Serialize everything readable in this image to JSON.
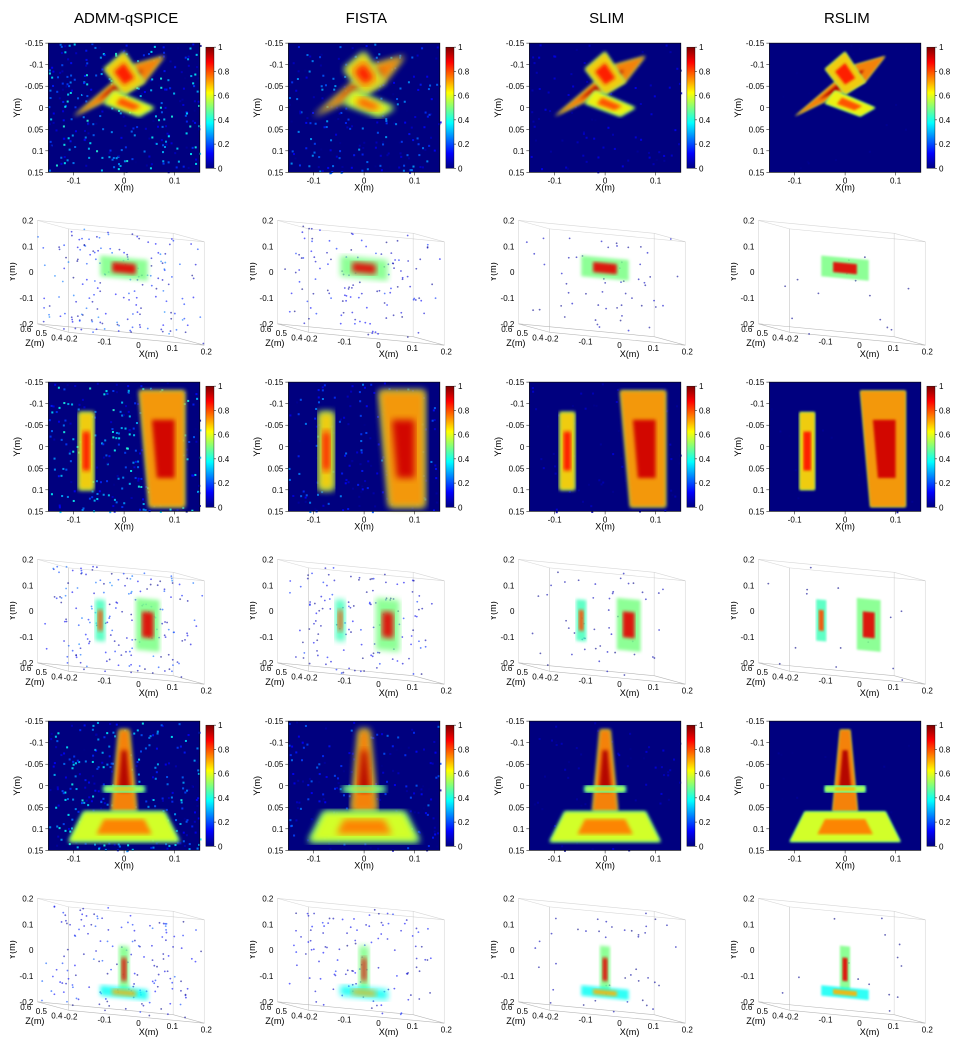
{
  "columns": [
    "ADMM-qSPICE",
    "FISTA",
    "SLIM",
    "RSLIM"
  ],
  "colormap": {
    "jet": [
      "#00007f",
      "#0000ff",
      "#007fff",
      "#00ffff",
      "#7fff7f",
      "#ffff00",
      "#ff7f00",
      "#ff0000",
      "#7f0000"
    ],
    "stops": [
      0,
      0.125,
      0.25,
      0.375,
      0.5,
      0.625,
      0.75,
      0.875,
      1
    ]
  },
  "colorbar": {
    "ticks": [
      0,
      0.2,
      0.4,
      0.6,
      0.8,
      1
    ],
    "labels": [
      "0",
      "0.2",
      "0.4",
      "0.6",
      "0.8",
      "1"
    ]
  },
  "axes2d": {
    "x": {
      "lim": [
        -0.15,
        0.15
      ],
      "ticks": [
        -0.1,
        0,
        0.1
      ],
      "labels": [
        "-0.1",
        "0",
        "0.1"
      ],
      "label": "X(m)"
    },
    "y": {
      "lim": [
        -0.15,
        0.15
      ],
      "ticks": [
        -0.15,
        -0.1,
        -0.05,
        0,
        0.05,
        0.1,
        0.15
      ],
      "labels": [
        "-0.15",
        "-0.1",
        "-0.05",
        "0",
        "0.05",
        "0.1",
        "0.15"
      ],
      "label": "Y(m)"
    }
  },
  "axes3d": {
    "x": {
      "lim": [
        -0.2,
        0.2
      ],
      "ticks": [
        -0.2,
        -0.1,
        0,
        0.1,
        0.2
      ],
      "labels": [
        "-0.2",
        "-0.1",
        "0",
        "0.1",
        "0.2"
      ],
      "label": "X(m)"
    },
    "y": {
      "lim": [
        -0.2,
        0.2
      ],
      "ticks": [
        -0.2,
        -0.1,
        0,
        0.1,
        0.2
      ],
      "labels": [
        "-0.2",
        "-0.1",
        "0",
        "0.1",
        "0.2"
      ],
      "label": "Y(m)"
    },
    "z": {
      "lim": [
        0.4,
        0.6
      ],
      "ticks": [
        0.4,
        0.5,
        0.6
      ],
      "labels": [
        "0.4",
        "0.5",
        "0.6"
      ],
      "label": "Z(m)"
    }
  },
  "rows": [
    {
      "type": "2d",
      "subject": "airplane",
      "noise": [
        0.35,
        0.25,
        0.1,
        0.02
      ],
      "shapes": [
        {
          "poly": [
            [
              0.02,
              -0.1
            ],
            [
              0.08,
              -0.12
            ],
            [
              0.04,
              -0.06
            ],
            [
              -0.1,
              0.02
            ],
            [
              -0.06,
              -0.02
            ]
          ],
          "intensity": 0.95
        },
        {
          "poly": [
            [
              -0.04,
              -0.09
            ],
            [
              0.0,
              -0.13
            ],
            [
              0.04,
              -0.06
            ],
            [
              0.0,
              -0.03
            ]
          ],
          "intensity": 0.85
        },
        {
          "poly": [
            [
              -0.02,
              -0.04
            ],
            [
              0.06,
              0.0
            ],
            [
              0.03,
              0.02
            ],
            [
              -0.04,
              -0.01
            ]
          ],
          "intensity": 0.8
        }
      ]
    },
    {
      "type": "3d",
      "subject": "airplane",
      "noise": [
        0.25,
        0.18,
        0.08,
        0.02
      ],
      "shapes": [
        {
          "center": [
            0.0,
            0.06,
            0.48
          ],
          "extent": [
            0.14,
            0.08,
            0.04
          ],
          "intensity": 0.9
        }
      ]
    },
    {
      "type": "2d",
      "subject": "knives",
      "noise": [
        0.35,
        0.22,
        0.08,
        0.02
      ],
      "shapes": [
        {
          "poly": [
            [
              -0.09,
              -0.08
            ],
            [
              -0.06,
              -0.08
            ],
            [
              -0.06,
              0.1
            ],
            [
              -0.09,
              0.1
            ]
          ],
          "intensity": 0.85
        },
        {
          "poly": [
            [
              0.03,
              -0.13
            ],
            [
              0.12,
              -0.13
            ],
            [
              0.12,
              0.14
            ],
            [
              0.05,
              0.14
            ]
          ],
          "intensity": 0.92
        }
      ]
    },
    {
      "type": "3d",
      "subject": "knives",
      "noise": [
        0.25,
        0.18,
        0.07,
        0.02
      ],
      "shapes": [
        {
          "center": [
            -0.07,
            0.0,
            0.48
          ],
          "extent": [
            0.03,
            0.16,
            0.04
          ],
          "intensity": 0.8
        },
        {
          "center": [
            0.07,
            0.0,
            0.48
          ],
          "extent": [
            0.07,
            0.2,
            0.04
          ],
          "intensity": 0.9
        }
      ]
    },
    {
      "type": "2d",
      "subject": "eiffel",
      "noise": [
        0.33,
        0.2,
        0.08,
        0.02
      ],
      "shapes": [
        {
          "poly": [
            [
              -0.01,
              -0.13
            ],
            [
              0.01,
              -0.13
            ],
            [
              0.025,
              0.06
            ],
            [
              -0.025,
              0.06
            ]
          ],
          "intensity": 0.95
        },
        {
          "poly": [
            [
              -0.08,
              0.06
            ],
            [
              0.08,
              0.06
            ],
            [
              0.11,
              0.13
            ],
            [
              -0.11,
              0.13
            ]
          ],
          "intensity": 0.75
        },
        {
          "poly": [
            [
              -0.04,
              0.0
            ],
            [
              0.04,
              0.0
            ],
            [
              0.04,
              0.015
            ],
            [
              -0.04,
              0.015
            ]
          ],
          "intensity": 0.7
        }
      ]
    },
    {
      "type": "3d",
      "subject": "eiffel",
      "noise": [
        0.22,
        0.16,
        0.06,
        0.02
      ],
      "shapes": [
        {
          "center": [
            0.0,
            -0.03,
            0.48
          ],
          "extent": [
            0.03,
            0.18,
            0.04
          ],
          "intensity": 0.9
        },
        {
          "center": [
            0.0,
            -0.12,
            0.48
          ],
          "extent": [
            0.14,
            0.04,
            0.04
          ],
          "intensity": 0.7
        }
      ]
    }
  ],
  "plot_style": {
    "bg_2d": "#00007f",
    "bg_3d": "#ffffff",
    "box_color": "#b0b0b0",
    "tick_fontsize": 8,
    "label_fontsize": 9,
    "header_fontsize": 15
  }
}
